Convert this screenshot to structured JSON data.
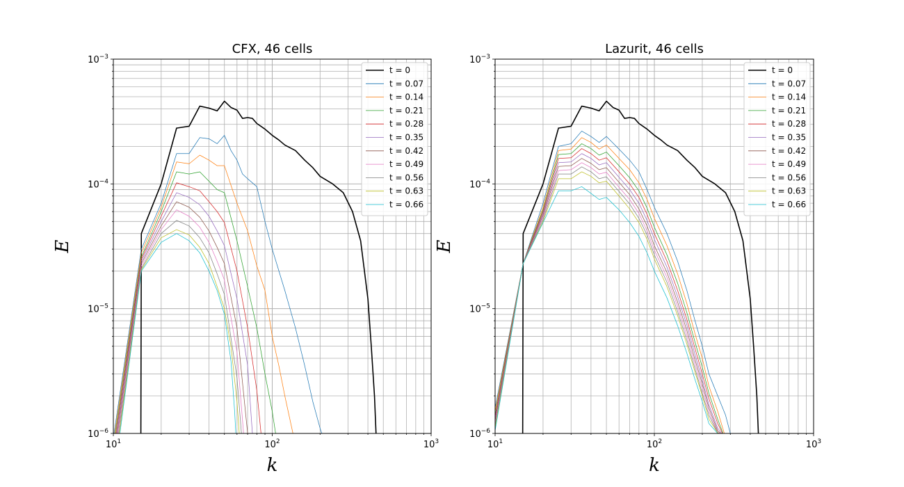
{
  "chart_data": [
    {
      "type": "line",
      "title": "CFX, 46 cells",
      "xlabel": "k",
      "ylabel": "E",
      "xscale": "log",
      "yscale": "log",
      "xlim": [
        10,
        1000
      ],
      "ylim": [
        1e-06,
        0.001
      ],
      "x_ticks": [
        "10",
        "10",
        "10"
      ],
      "x_tick_exps": [
        "1",
        "2",
        "3"
      ],
      "y_ticks": [
        "10",
        "10",
        "10",
        "10"
      ],
      "y_tick_exps": [
        "−6",
        "−5",
        "−4",
        "−3"
      ],
      "grid": "major and minor",
      "legend_position": "top-right",
      "series": [
        {
          "name": "t = 0",
          "color": "#000000",
          "x": [
            14.9,
            15,
            20,
            25,
            30,
            35,
            40,
            45,
            50,
            55,
            60,
            65,
            70,
            75,
            80,
            90,
            100,
            110,
            120,
            140,
            160,
            180,
            200,
            240,
            280,
            320,
            360,
            400,
            420,
            440,
            450
          ],
          "y": [
            1e-06,
            4e-05,
            0.0001,
            0.00028,
            0.00029,
            0.00042,
            0.000405,
            0.000385,
            0.00046,
            0.00041,
            0.00039,
            0.000335,
            0.00034,
            0.000335,
            0.000305,
            0.000275,
            0.000245,
            0.000225,
            0.000205,
            0.000185,
            0.000155,
            0.000135,
            0.000115,
            0.0001,
            8.5e-05,
            6e-05,
            3.5e-05,
            1.2e-05,
            5e-06,
            2e-06,
            1e-06
          ]
        },
        {
          "name": "t = 0.07",
          "color": "#1f77b4",
          "x": [
            10.1,
            15,
            20,
            25,
            30,
            35,
            40,
            45,
            50,
            55,
            60,
            65,
            70,
            80,
            90,
            100,
            120,
            140,
            160,
            180,
            200,
            205
          ],
          "y": [
            1e-06,
            3e-05,
            7e-05,
            0.000175,
            0.000175,
            0.000235,
            0.00023,
            0.00021,
            0.000245,
            0.000185,
            0.000155,
            0.00012,
            0.00011,
            9.5e-05,
            5e-05,
            3e-05,
            1.4e-05,
            7e-06,
            3.5e-06,
            1.8e-06,
            1.1e-06,
            1e-06
          ]
        },
        {
          "name": "t = 0.14",
          "color": "#ff7f0e",
          "x": [
            10.2,
            15,
            20,
            25,
            30,
            35,
            40,
            45,
            50,
            60,
            70,
            80,
            90,
            100,
            110,
            120,
            135
          ],
          "y": [
            1e-06,
            2.8e-05,
            6.5e-05,
            0.00015,
            0.000145,
            0.00017,
            0.000155,
            0.00014,
            0.00014,
            7e-05,
            4.2e-05,
            2.2e-05,
            1.4e-05,
            6e-06,
            3.5e-06,
            2e-06,
            1e-06
          ]
        },
        {
          "name": "t = 0.21",
          "color": "#2ca02c",
          "x": [
            10.3,
            15,
            20,
            25,
            30,
            35,
            40,
            45,
            50,
            60,
            70,
            80,
            90,
            100,
            105
          ],
          "y": [
            1e-06,
            2.6e-05,
            6e-05,
            0.000125,
            0.00012,
            0.000125,
            0.000105,
            9e-05,
            8.5e-05,
            3.5e-05,
            1.5e-05,
            7e-06,
            3e-06,
            1.5e-06,
            1e-06
          ]
        },
        {
          "name": "t = 0.28",
          "color": "#d62728",
          "x": [
            10.4,
            15,
            20,
            25,
            30,
            35,
            40,
            45,
            50,
            60,
            70,
            80,
            85
          ],
          "y": [
            1e-06,
            2.5e-05,
            5.5e-05,
            0.000102,
            9.5e-05,
            8.8e-05,
            7.2e-05,
            6e-05,
            4.9e-05,
            2e-05,
            7e-06,
            2.2e-06,
            1e-06
          ]
        },
        {
          "name": "t = 0.35",
          "color": "#9467bd",
          "x": [
            10.5,
            15,
            20,
            25,
            30,
            35,
            40,
            45,
            50,
            60,
            70,
            75
          ],
          "y": [
            1e-06,
            2.4e-05,
            5e-05,
            8.5e-05,
            7.8e-05,
            6.8e-05,
            5.5e-05,
            4.2e-05,
            3.2e-05,
            1.2e-05,
            3.5e-06,
            1e-06
          ]
        },
        {
          "name": "t = 0.42",
          "color": "#8c564b",
          "x": [
            10.6,
            15,
            20,
            25,
            30,
            35,
            40,
            45,
            50,
            60,
            70
          ],
          "y": [
            1e-06,
            2.3e-05,
            4.6e-05,
            7.2e-05,
            6.5e-05,
            5.4e-05,
            4.2e-05,
            3.1e-05,
            2.3e-05,
            7e-06,
            1e-06
          ]
        },
        {
          "name": "t = 0.49",
          "color": "#e377c2",
          "x": [
            10.7,
            15,
            20,
            25,
            30,
            35,
            40,
            45,
            50,
            60,
            66
          ],
          "y": [
            1e-06,
            2.2e-05,
            4.3e-05,
            6.2e-05,
            5.5e-05,
            4.5e-05,
            3.4e-05,
            2.4e-05,
            1.7e-05,
            4.5e-06,
            1e-06
          ]
        },
        {
          "name": "t = 0.56",
          "color": "#7f7f7f",
          "x": [
            10.8,
            15,
            20,
            25,
            30,
            35,
            40,
            45,
            50,
            60,
            64
          ],
          "y": [
            1e-06,
            2.1e-05,
            4e-05,
            5.1e-05,
            4.6e-05,
            3.7e-05,
            2.8e-05,
            1.9e-05,
            1.3e-05,
            2.8e-06,
            1e-06
          ]
        },
        {
          "name": "t = 0.63",
          "color": "#bcbd22",
          "x": [
            10.9,
            15,
            20,
            25,
            30,
            35,
            40,
            45,
            50,
            55,
            60,
            62
          ],
          "y": [
            1e-06,
            2.05e-05,
            3.7e-05,
            4.3e-05,
            3.9e-05,
            3.1e-05,
            2.3e-05,
            1.5e-05,
            1e-05,
            5e-06,
            1.8e-06,
            1e-06
          ]
        },
        {
          "name": "t = 0.66",
          "color": "#17becf",
          "x": [
            11,
            15,
            20,
            25,
            30,
            35,
            40,
            45,
            50,
            55,
            58,
            59
          ],
          "y": [
            1e-06,
            2e-05,
            3.4e-05,
            4e-05,
            3.5e-05,
            2.8e-05,
            2e-05,
            1.4e-05,
            9e-06,
            3.8e-06,
            1.5e-06,
            1e-06
          ]
        }
      ]
    },
    {
      "type": "line",
      "title": "Lazurit, 46 cells",
      "xlabel": "k",
      "ylabel": "E",
      "xscale": "log",
      "yscale": "log",
      "xlim": [
        10,
        1000
      ],
      "ylim": [
        1e-06,
        0.001
      ],
      "x_ticks": [
        "10",
        "10",
        "10"
      ],
      "x_tick_exps": [
        "1",
        "2",
        "3"
      ],
      "y_ticks": [
        "10",
        "10",
        "10",
        "10"
      ],
      "y_tick_exps": [
        "−6",
        "−5",
        "−4",
        "−3"
      ],
      "grid": "major and minor",
      "legend_position": "top-right",
      "series": [
        {
          "name": "t = 0",
          "color": "#000000",
          "x": [
            14.9,
            15,
            20,
            25,
            30,
            35,
            40,
            45,
            50,
            55,
            60,
            65,
            70,
            75,
            80,
            90,
            100,
            110,
            120,
            140,
            160,
            180,
            200,
            240,
            280,
            320,
            360,
            400,
            420,
            440,
            450
          ],
          "y": [
            1e-06,
            4e-05,
            0.0001,
            0.00028,
            0.00029,
            0.00042,
            0.000405,
            0.000385,
            0.00046,
            0.00041,
            0.00039,
            0.000335,
            0.00034,
            0.000335,
            0.000305,
            0.000275,
            0.000245,
            0.000225,
            0.000205,
            0.000185,
            0.000155,
            0.000135,
            0.000115,
            0.0001,
            8.5e-05,
            6e-05,
            3.5e-05,
            1.2e-05,
            5e-06,
            2e-06,
            1e-06
          ]
        },
        {
          "name": "t = 0.07",
          "color": "#1f77b4",
          "x": [
            10,
            15,
            20,
            25,
            30,
            35,
            40,
            45,
            50,
            60,
            70,
            80,
            90,
            100,
            120,
            140,
            160,
            180,
            200,
            220,
            250,
            280,
            300
          ],
          "y": [
            1.6e-06,
            2.3e-05,
            7e-05,
            0.0002,
            0.00021,
            0.000265,
            0.00024,
            0.000215,
            0.00024,
            0.00019,
            0.000155,
            0.000125,
            9e-05,
            6.5e-05,
            4e-05,
            2.4e-05,
            1.4e-05,
            8e-06,
            5e-06,
            3e-06,
            2e-06,
            1.4e-06,
            1e-06
          ]
        },
        {
          "name": "t = 0.14",
          "color": "#ff7f0e",
          "x": [
            10,
            15,
            20,
            25,
            30,
            35,
            40,
            45,
            50,
            60,
            70,
            80,
            90,
            100,
            120,
            140,
            160,
            180,
            200,
            220,
            250,
            275
          ],
          "y": [
            1.5e-06,
            2.3e-05,
            6.5e-05,
            0.000185,
            0.00019,
            0.000235,
            0.000215,
            0.00019,
            0.000205,
            0.00016,
            0.00013,
            0.000102,
            7.5e-05,
            5.3e-05,
            3.2e-05,
            1.9e-05,
            1.1e-05,
            6.3e-06,
            4e-06,
            2.4e-06,
            1.5e-06,
            1e-06
          ]
        },
        {
          "name": "t = 0.21",
          "color": "#2ca02c",
          "x": [
            10,
            15,
            20,
            25,
            30,
            35,
            40,
            45,
            50,
            60,
            70,
            80,
            90,
            100,
            120,
            140,
            160,
            180,
            200,
            220,
            250,
            270
          ],
          "y": [
            1.4e-06,
            2.3e-05,
            6.2e-05,
            0.000172,
            0.000175,
            0.00021,
            0.000192,
            0.00017,
            0.00018,
            0.00014,
            0.000112,
            8.8e-05,
            6.4e-05,
            4.5e-05,
            2.7e-05,
            1.6e-05,
            9.3e-06,
            5.4e-06,
            3.4e-06,
            2.1e-06,
            1.3e-06,
            1e-06
          ]
        },
        {
          "name": "t = 0.28",
          "color": "#d62728",
          "x": [
            10,
            15,
            20,
            25,
            30,
            35,
            40,
            45,
            50,
            60,
            70,
            80,
            90,
            100,
            120,
            140,
            160,
            180,
            200,
            220,
            250,
            268
          ],
          "y": [
            1.35e-06,
            2.3e-05,
            6e-05,
            0.00016,
            0.000162,
            0.000192,
            0.000175,
            0.000155,
            0.000162,
            0.000125,
            0.0001,
            7.8e-05,
            5.7e-05,
            4e-05,
            2.4e-05,
            1.4e-05,
            8.2e-06,
            4.8e-06,
            3e-06,
            1.9e-06,
            1.2e-06,
            1e-06
          ]
        },
        {
          "name": "t = 0.35",
          "color": "#9467bd",
          "x": [
            10,
            15,
            20,
            25,
            30,
            35,
            40,
            45,
            50,
            60,
            70,
            80,
            90,
            100,
            120,
            140,
            160,
            180,
            200,
            220,
            250,
            265
          ],
          "y": [
            1.3e-06,
            2.3e-05,
            5.8e-05,
            0.000148,
            0.00015,
            0.000175,
            0.00016,
            0.000142,
            0.000148,
            0.000113,
            9e-05,
            7e-05,
            5.1e-05,
            3.6e-05,
            2.15e-05,
            1.25e-05,
            7.4e-06,
            4.3e-06,
            2.7e-06,
            1.7e-06,
            1.1e-06,
            1e-06
          ]
        },
        {
          "name": "t = 0.42",
          "color": "#8c564b",
          "x": [
            10,
            15,
            20,
            25,
            30,
            35,
            40,
            45,
            50,
            60,
            70,
            80,
            90,
            100,
            120,
            140,
            160,
            180,
            200,
            220,
            250,
            262
          ],
          "y": [
            1.25e-06,
            2.3e-05,
            5.6e-05,
            0.000138,
            0.00014,
            0.00016,
            0.000146,
            0.00013,
            0.000135,
            0.000103,
            8.2e-05,
            6.3e-05,
            4.6e-05,
            3.2e-05,
            1.95e-05,
            1.13e-05,
            6.7e-06,
            3.9e-06,
            2.5e-06,
            1.6e-06,
            1.05e-06,
            1e-06
          ]
        },
        {
          "name": "t = 0.49",
          "color": "#e377c2",
          "x": [
            10,
            15,
            20,
            25,
            30,
            35,
            40,
            45,
            50,
            60,
            70,
            80,
            90,
            100,
            120,
            140,
            160,
            180,
            200,
            220,
            250,
            260
          ],
          "y": [
            1.2e-06,
            2.3e-05,
            5.4e-05,
            0.000128,
            0.00013,
            0.000148,
            0.000135,
            0.00012,
            0.000124,
            9.4e-05,
            7.5e-05,
            5.8e-05,
            4.2e-05,
            2.95e-05,
            1.78e-05,
            1.04e-05,
            6.1e-06,
            3.6e-06,
            2.3e-06,
            1.5e-06,
            1.02e-06,
            1e-06
          ]
        },
        {
          "name": "t = 0.56",
          "color": "#7f7f7f",
          "x": [
            10,
            15,
            20,
            25,
            30,
            35,
            40,
            45,
            50,
            60,
            70,
            80,
            90,
            100,
            120,
            140,
            160,
            180,
            200,
            220,
            250,
            258
          ],
          "y": [
            1.15e-06,
            2.3e-05,
            5.2e-05,
            0.00012,
            0.00012,
            0.000137,
            0.000125,
            0.00011,
            0.000114,
            8.7e-05,
            6.9e-05,
            5.3e-05,
            3.9e-05,
            2.7e-05,
            1.63e-05,
            9.5e-06,
            5.6e-06,
            3.3e-06,
            2.1e-06,
            1.4e-06,
            1.01e-06,
            1e-06
          ]
        },
        {
          "name": "t = 0.63",
          "color": "#bcbd22",
          "x": [
            10,
            15,
            20,
            25,
            30,
            35,
            40,
            45,
            50,
            60,
            70,
            80,
            90,
            100,
            120,
            140,
            160,
            180,
            200,
            220,
            250,
            256
          ],
          "y": [
            1.1e-06,
            2.3e-05,
            5e-05,
            0.00011,
            0.00011,
            0.000125,
            0.000115,
            0.000102,
            0.000105,
            8e-05,
            6.3e-05,
            4.9e-05,
            3.6e-05,
            2.5e-05,
            1.5e-05,
            8.8e-06,
            5.2e-06,
            3.1e-06,
            2e-06,
            1.3e-06,
            1.01e-06,
            1e-06
          ]
        },
        {
          "name": "t = 0.66",
          "color": "#17becf",
          "x": [
            10,
            15,
            20,
            25,
            30,
            35,
            40,
            45,
            50,
            60,
            70,
            80,
            90,
            100,
            120,
            140,
            160,
            180,
            200,
            220,
            250,
            255
          ],
          "y": [
            1.05e-06,
            2.3e-05,
            4.9e-05,
            8.8e-05,
            8.8e-05,
            9.5e-05,
            8.4e-05,
            7.5e-05,
            7.8e-05,
            6.2e-05,
            4.9e-05,
            3.8e-05,
            2.8e-05,
            2e-05,
            1.22e-05,
            7.3e-06,
            4.4e-06,
            2.7e-06,
            1.8e-06,
            1.2e-06,
            1e-06,
            1e-06
          ]
        }
      ]
    }
  ]
}
